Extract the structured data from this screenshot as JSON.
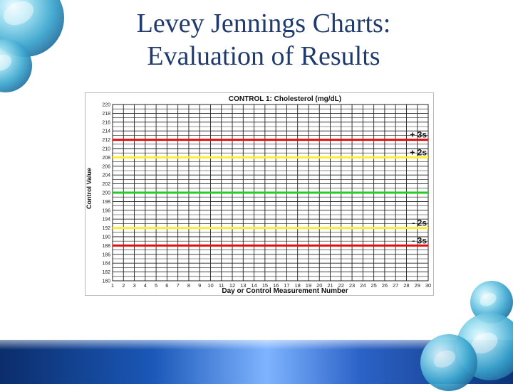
{
  "slide": {
    "title_line1": "Levey Jennings Charts:",
    "title_line2": "Evaluation of Results"
  },
  "colors": {
    "title": "#1f3b6e",
    "grid": "#222222",
    "mean_line": "#22cc22",
    "two_sd_line": "#ffee33",
    "three_sd_line": "#e01010"
  },
  "chart_data": {
    "type": "line",
    "title": "CONTROL 1: Cholesterol (mg/dL)",
    "xlabel": "Day or Control Measurement Number",
    "ylabel": "Control Value",
    "x_ticks": [
      "1",
      "2",
      "3",
      "4",
      "5",
      "6",
      "7",
      "8",
      "9",
      "10",
      "11",
      "12",
      "13",
      "14",
      "15",
      "16",
      "17",
      "18",
      "19",
      "20",
      "21",
      "22",
      "23",
      "24",
      "25",
      "26",
      "27",
      "28",
      "29",
      "30"
    ],
    "y_ticks": [
      "180",
      "182",
      "184",
      "186",
      "188",
      "190",
      "192",
      "194",
      "196",
      "198",
      "200",
      "202",
      "204",
      "206",
      "208",
      "210",
      "212",
      "214",
      "216",
      "218",
      "220"
    ],
    "xlim": [
      1,
      30
    ],
    "ylim": [
      180,
      220
    ],
    "grid": true,
    "control_limits": [
      {
        "label": "+ 3s",
        "value": 212,
        "color": "#e01010"
      },
      {
        "label": "+ 2s",
        "value": 208,
        "color": "#ffee33"
      },
      {
        "label": "",
        "value": 200,
        "color": "#22cc22"
      },
      {
        "label": "- 2s",
        "value": 192,
        "color": "#ffee33"
      },
      {
        "label": "- 3s",
        "value": 188,
        "color": "#e01010"
      }
    ]
  }
}
